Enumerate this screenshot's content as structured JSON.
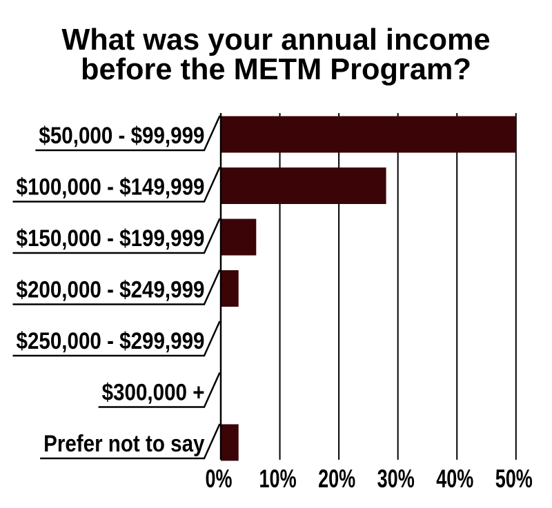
{
  "page": {
    "background": "#FFFFFF"
  },
  "title": {
    "line1": "What was your annual income",
    "line2": "before the METM Program?"
  },
  "chart_data": {
    "type": "bar",
    "orientation": "horizontal",
    "title": "What was your annual income before the METM Program?",
    "categories": [
      "$50,000 - $99,999",
      "$100,000 - $149,999",
      "$150,000 - $199,999",
      "$200,000 - $249,999",
      "$250,000 - $299,999",
      "$300,000 +",
      "Prefer not to say"
    ],
    "values": [
      50,
      28,
      6,
      3,
      0,
      0,
      3
    ],
    "value_unit": "percent",
    "xlabel": "",
    "ylabel": "",
    "xlim": [
      0,
      50
    ],
    "x_ticks": [
      0,
      10,
      20,
      30,
      40,
      50
    ],
    "x_tick_labels": [
      "0%",
      "10%",
      "20%",
      "30%",
      "40%",
      "50%"
    ],
    "grid": "vertical-full-height",
    "legend": false,
    "label_style": "underline-with-diagonal-leader-to-axis",
    "colors": {
      "bar": "#3B0508",
      "grid": "#000000",
      "axis": "#000000",
      "text": "#000000",
      "background": "#FFFFFF"
    }
  }
}
